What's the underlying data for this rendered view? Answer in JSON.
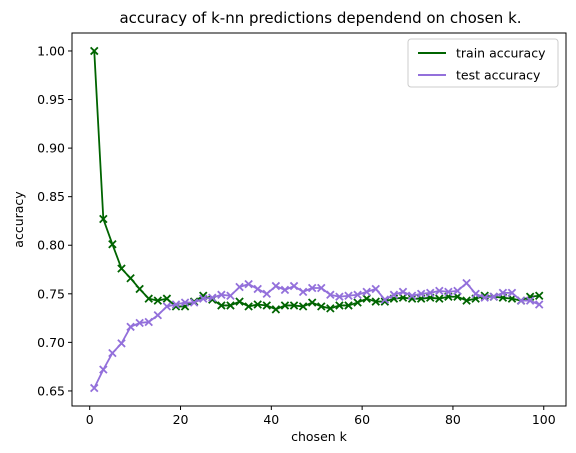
{
  "chart_data": {
    "type": "line",
    "title": "accuracy of k-nn predictions dependend on chosen k.",
    "xlabel": "chosen k",
    "ylabel": "accuracy",
    "xlim": [
      -3.9,
      104.9
    ],
    "ylim": [
      0.6345,
      1.0185
    ],
    "xticks": [
      0,
      20,
      40,
      60,
      80,
      100
    ],
    "xtick_labels": [
      "0",
      "20",
      "40",
      "60",
      "80",
      "100"
    ],
    "yticks": [
      0.65,
      0.7,
      0.75,
      0.8,
      0.85,
      0.9,
      0.95,
      1.0
    ],
    "ytick_labels": [
      "0.65",
      "0.70",
      "0.75",
      "0.80",
      "0.85",
      "0.90",
      "0.95",
      "1.00"
    ],
    "grid": false,
    "legend_position": "top-right",
    "marker": "x",
    "x": [
      1,
      3,
      5,
      7,
      9,
      11,
      13,
      15,
      17,
      19,
      21,
      23,
      25,
      27,
      29,
      31,
      33,
      35,
      37,
      39,
      41,
      43,
      45,
      47,
      49,
      51,
      53,
      55,
      57,
      59,
      61,
      63,
      65,
      67,
      69,
      71,
      73,
      75,
      77,
      79,
      81,
      83,
      85,
      87,
      89,
      91,
      93,
      95,
      97,
      99
    ],
    "series": [
      {
        "name": "train accuracy",
        "color": "#006400",
        "values": [
          1.0,
          0.827,
          0.801,
          0.776,
          0.766,
          0.755,
          0.745,
          0.743,
          0.745,
          0.737,
          0.737,
          0.742,
          0.748,
          0.744,
          0.738,
          0.738,
          0.742,
          0.737,
          0.739,
          0.738,
          0.734,
          0.738,
          0.738,
          0.737,
          0.741,
          0.737,
          0.735,
          0.738,
          0.738,
          0.741,
          0.745,
          0.742,
          0.742,
          0.745,
          0.746,
          0.745,
          0.745,
          0.746,
          0.745,
          0.747,
          0.747,
          0.743,
          0.745,
          0.748,
          0.747,
          0.746,
          0.745,
          0.743,
          0.747,
          0.748
        ]
      },
      {
        "name": "test accuracy",
        "color": "#9370DB",
        "values": [
          0.653,
          0.672,
          0.689,
          0.699,
          0.716,
          0.72,
          0.721,
          0.728,
          0.737,
          0.739,
          0.741,
          0.741,
          0.745,
          0.746,
          0.749,
          0.748,
          0.757,
          0.76,
          0.755,
          0.75,
          0.758,
          0.754,
          0.758,
          0.752,
          0.756,
          0.756,
          0.749,
          0.747,
          0.748,
          0.749,
          0.752,
          0.755,
          0.744,
          0.749,
          0.752,
          0.748,
          0.75,
          0.751,
          0.753,
          0.752,
          0.753,
          0.761,
          0.75,
          0.746,
          0.747,
          0.751,
          0.751,
          0.743,
          0.743,
          0.739
        ]
      }
    ]
  }
}
